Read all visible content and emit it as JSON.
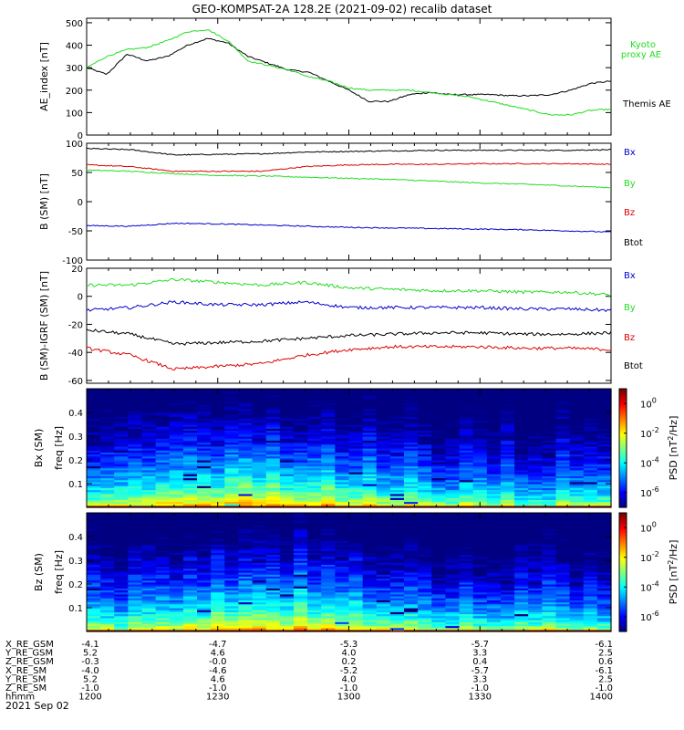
{
  "title": "GEO-KOMPSAT-2A 128.2E (2021-09-02) recalib dataset",
  "date_label": "2021 Sep 02",
  "colors": {
    "black": "#000000",
    "red": "#dd0000",
    "green": "#22dd22",
    "blue": "#0000cc"
  },
  "chart_data": [
    {
      "type": "line",
      "ylabel": "AE_index [nT]",
      "ylim": [
        0,
        520
      ],
      "yticks": [
        0,
        100,
        200,
        300,
        400,
        500
      ],
      "x": [
        "1200",
        "1203",
        "1206",
        "1210",
        "1215",
        "1220",
        "1225",
        "1228",
        "1231",
        "1235",
        "1240",
        "1245",
        "1250",
        "1255",
        "1300",
        "1305",
        "1310",
        "1315",
        "1320",
        "1325",
        "1330",
        "1335",
        "1340",
        "1345",
        "1350",
        "1355",
        "1400"
      ],
      "series": [
        {
          "name": "Themis AE",
          "color": "black",
          "values": [
            300,
            270,
            360,
            330,
            350,
            400,
            430,
            410,
            350,
            320,
            290,
            280,
            240,
            200,
            150,
            150,
            180,
            190,
            180,
            180,
            180,
            175,
            175,
            180,
            200,
            230,
            240
          ]
        },
        {
          "name": "Kyoto proxy AE",
          "color": "green",
          "values": [
            300,
            350,
            380,
            390,
            420,
            460,
            470,
            420,
            330,
            310,
            290,
            260,
            240,
            210,
            200,
            200,
            200,
            190,
            180,
            170,
            150,
            130,
            110,
            90,
            90,
            110,
            115
          ]
        }
      ]
    },
    {
      "type": "line",
      "ylabel": "B (SM) [nT]",
      "ylim": [
        -100,
        100
      ],
      "yticks": [
        -100,
        -50,
        0,
        50,
        100
      ],
      "x": [
        "1200",
        "1210",
        "1220",
        "1230",
        "1240",
        "1250",
        "1300",
        "1310",
        "1320",
        "1330",
        "1340",
        "1350",
        "1400"
      ],
      "legend": [
        {
          "label": "Bx",
          "color": "blue"
        },
        {
          "label": "By",
          "color": "green"
        },
        {
          "label": "Bz",
          "color": "red"
        },
        {
          "label": "Btot",
          "color": "black"
        }
      ],
      "series": [
        {
          "name": "Btot",
          "color": "black",
          "values": [
            91,
            89,
            80,
            81,
            82,
            85,
            86,
            87,
            88,
            88,
            88,
            88,
            89
          ]
        },
        {
          "name": "Bz",
          "color": "red",
          "values": [
            63,
            60,
            52,
            52,
            52,
            60,
            63,
            64,
            64,
            65,
            65,
            65,
            64
          ]
        },
        {
          "name": "By",
          "color": "green",
          "values": [
            54,
            52,
            48,
            45,
            44,
            42,
            40,
            38,
            35,
            32,
            30,
            27,
            24
          ]
        },
        {
          "name": "Bx",
          "color": "blue",
          "values": [
            -41,
            -42,
            -37,
            -38,
            -40,
            -42,
            -44,
            -45,
            -46,
            -47,
            -48,
            -50,
            -52
          ]
        }
      ]
    },
    {
      "type": "line",
      "ylabel": "B (SM)-IGRF (SM) [nT]",
      "ylim": [
        -62,
        20
      ],
      "yticks": [
        -60,
        -40,
        -20,
        0,
        20
      ],
      "x": [
        "1200",
        "1210",
        "1220",
        "1230",
        "1240",
        "1250",
        "1300",
        "1310",
        "1320",
        "1330",
        "1340",
        "1350",
        "1400"
      ],
      "legend": [
        {
          "label": "Bx",
          "color": "blue"
        },
        {
          "label": "By",
          "color": "green"
        },
        {
          "label": "Bz",
          "color": "red"
        },
        {
          "label": "Btot",
          "color": "black"
        }
      ],
      "series": [
        {
          "name": "By",
          "color": "green",
          "values": [
            8,
            8,
            12,
            10,
            8,
            10,
            6,
            5,
            4,
            4,
            3,
            3,
            1
          ]
        },
        {
          "name": "Bx",
          "color": "blue",
          "values": [
            -10,
            -8,
            -4,
            -6,
            -6,
            -4,
            -8,
            -8,
            -8,
            -8,
            -9,
            -9,
            -10
          ]
        },
        {
          "name": "Btot",
          "color": "black",
          "values": [
            -24,
            -27,
            -34,
            -33,
            -32,
            -30,
            -28,
            -27,
            -26,
            -26,
            -27,
            -27,
            -26
          ]
        },
        {
          "name": "Bz",
          "color": "red",
          "values": [
            -37,
            -42,
            -52,
            -50,
            -48,
            -42,
            -38,
            -36,
            -36,
            -36,
            -37,
            -37,
            -38
          ]
        }
      ]
    },
    {
      "type": "heatmap",
      "ylabel": "Bx (SM) freq [Hz]",
      "ylim": [
        0,
        0.5
      ],
      "yticks": [
        "0.1",
        "0.2",
        "0.3",
        "0.4"
      ],
      "colorbar_label": "PSD [nT^2/Hz]",
      "colorbar_ticks": [
        "10^0",
        "10^-2",
        "10^-4",
        "10^-6"
      ],
      "colorbar_range_log10": [
        -7,
        1
      ]
    },
    {
      "type": "heatmap",
      "ylabel": "Bz (SM) freq [Hz]",
      "ylim": [
        0,
        0.5
      ],
      "yticks": [
        "0.1",
        "0.2",
        "0.3",
        "0.4"
      ],
      "colorbar_label": "PSD [nT^2/Hz]",
      "colorbar_ticks": [
        "10^0",
        "10^-2",
        "10^-4",
        "10^-6"
      ],
      "colorbar_range_log10": [
        -7,
        1
      ]
    }
  ],
  "ephemeris": {
    "columns": [
      "1200",
      "1230",
      "1300",
      "1330",
      "1400"
    ],
    "rows": [
      {
        "label": "X_RE_GSM",
        "values": [
          "-4.1",
          "-4.7",
          "-5.3",
          "-5.7",
          "-6.1"
        ]
      },
      {
        "label": "Y_RE_GSM",
        "values": [
          "5.2",
          "4.6",
          "4.0",
          "3.3",
          "2.5"
        ]
      },
      {
        "label": "Z_RE_GSM",
        "values": [
          "-0.3",
          "-0.0",
          "0.2",
          "0.4",
          "0.6"
        ]
      },
      {
        "label": "X_RE_SM",
        "values": [
          "-4.0",
          "-4.6",
          "-5.2",
          "-5.7",
          "-6.1"
        ]
      },
      {
        "label": "Y_RE_SM",
        "values": [
          "5.2",
          "4.6",
          "4.0",
          "3.3",
          "2.5"
        ]
      },
      {
        "label": "Z_RE_SM",
        "values": [
          "-1.0",
          "-1.0",
          "-1.0",
          "-1.0",
          "-1.0"
        ]
      },
      {
        "label": "hhmm",
        "values": [
          "1200",
          "1230",
          "1300",
          "1330",
          "1400"
        ]
      }
    ]
  }
}
